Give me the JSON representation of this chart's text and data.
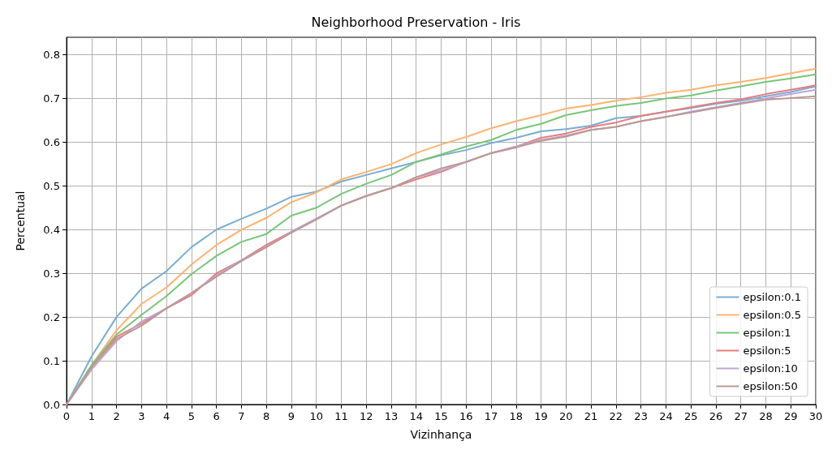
{
  "chart_data": {
    "type": "line",
    "title": "Neighborhood Preservation - Iris",
    "xlabel": "Vizinhança",
    "ylabel": "Percentual",
    "x": [
      0,
      1,
      2,
      3,
      4,
      5,
      6,
      7,
      8,
      9,
      10,
      11,
      12,
      13,
      14,
      15,
      16,
      17,
      18,
      19,
      20,
      21,
      22,
      23,
      24,
      25,
      26,
      27,
      28,
      29,
      30
    ],
    "series": [
      {
        "name": "epsilon:0.1",
        "color": "#79add2",
        "values": [
          0,
          0.11,
          0.2,
          0.265,
          0.305,
          0.36,
          0.4,
          0.425,
          0.448,
          0.475,
          0.487,
          0.51,
          0.525,
          0.54,
          0.555,
          0.57,
          0.582,
          0.598,
          0.61,
          0.625,
          0.63,
          0.638,
          0.655,
          0.66,
          0.67,
          0.678,
          0.688,
          0.695,
          0.705,
          0.715,
          0.728
        ]
      },
      {
        "name": "epsilon:0.5",
        "color": "#ffb26e",
        "values": [
          0,
          0.09,
          0.17,
          0.23,
          0.268,
          0.32,
          0.365,
          0.4,
          0.427,
          0.463,
          0.485,
          0.515,
          0.532,
          0.55,
          0.575,
          0.595,
          0.612,
          0.632,
          0.648,
          0.662,
          0.677,
          0.685,
          0.695,
          0.703,
          0.713,
          0.72,
          0.73,
          0.738,
          0.747,
          0.758,
          0.768
        ]
      },
      {
        "name": "epsilon:1",
        "color": "#78c678",
        "values": [
          0,
          0.09,
          0.16,
          0.205,
          0.248,
          0.298,
          0.34,
          0.372,
          0.39,
          0.432,
          0.45,
          0.482,
          0.505,
          0.525,
          0.555,
          0.572,
          0.59,
          0.605,
          0.628,
          0.642,
          0.662,
          0.673,
          0.683,
          0.69,
          0.7,
          0.707,
          0.718,
          0.728,
          0.738,
          0.746,
          0.755
        ]
      },
      {
        "name": "epsilon:5",
        "color": "#e67d7e",
        "values": [
          0,
          0.085,
          0.155,
          0.185,
          0.22,
          0.25,
          0.3,
          0.33,
          0.365,
          0.395,
          0.425,
          0.455,
          0.477,
          0.495,
          0.515,
          0.532,
          0.555,
          0.575,
          0.59,
          0.61,
          0.62,
          0.635,
          0.645,
          0.66,
          0.67,
          0.68,
          0.69,
          0.698,
          0.71,
          0.72,
          0.73
        ]
      },
      {
        "name": "epsilon:10",
        "color": "#bfa4d7",
        "values": [
          0,
          0.08,
          0.145,
          0.19,
          0.22,
          0.255,
          0.295,
          0.33,
          0.36,
          0.395,
          0.425,
          0.455,
          0.477,
          0.495,
          0.52,
          0.535,
          0.555,
          0.575,
          0.59,
          0.605,
          0.615,
          0.628,
          0.635,
          0.648,
          0.658,
          0.67,
          0.68,
          0.69,
          0.7,
          0.71,
          0.72
        ]
      },
      {
        "name": "epsilon:50",
        "color": "#ba9a93",
        "values": [
          0,
          0.085,
          0.15,
          0.18,
          0.22,
          0.255,
          0.292,
          0.328,
          0.36,
          0.393,
          0.423,
          0.455,
          0.477,
          0.495,
          0.52,
          0.54,
          0.555,
          0.575,
          0.588,
          0.603,
          0.613,
          0.628,
          0.635,
          0.648,
          0.658,
          0.668,
          0.678,
          0.688,
          0.697,
          0.701,
          0.705
        ]
      }
    ],
    "xlim": [
      0,
      30
    ],
    "xticks": [
      0,
      1,
      2,
      3,
      4,
      5,
      6,
      7,
      8,
      9,
      10,
      11,
      12,
      13,
      14,
      15,
      16,
      17,
      18,
      19,
      20,
      21,
      22,
      23,
      24,
      25,
      26,
      27,
      28,
      29,
      30
    ],
    "ylim": [
      0,
      0.84
    ],
    "yticks": [
      {
        "value": 0,
        "label": "0.0"
      },
      0.1,
      0.2,
      0.3,
      0.4,
      0.5,
      0.6,
      0.7,
      0.8
    ],
    "grid": true,
    "legend": "bottom right",
    "marker": "none",
    "line_style": "solid"
  }
}
